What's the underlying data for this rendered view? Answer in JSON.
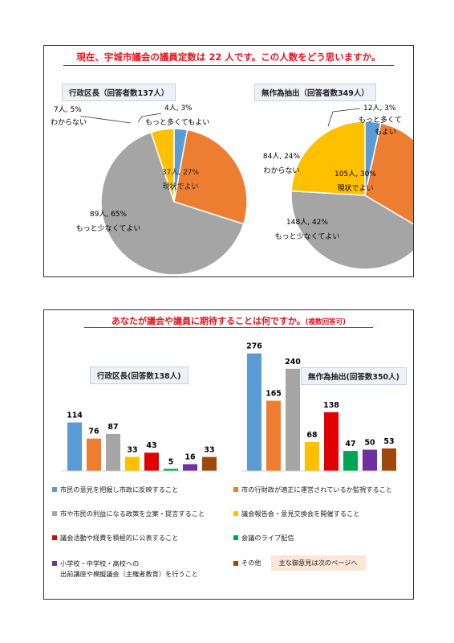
{
  "q1": {
    "title": "現在、宇城市議会の議員定数は 22 人です。この人数をどう思いますか。",
    "colors": {
      "more": "#5b9bd5",
      "current": "#ed7d31",
      "less": "#a5a5a5",
      "unknown": "#ffc000"
    }
  },
  "q2": {
    "title": "あなたが議会や議員に期待することは何ですか。",
    "title_note": "(複数回答可)"
  },
  "chart_data": [
    {
      "type": "pie",
      "title": "行政区長（回答者数137人）",
      "slices": [
        {
          "key": "more",
          "label_line1": "4人, 3%",
          "label_line2": "もっと多くてもよい",
          "value": 4,
          "percent": 3
        },
        {
          "key": "current",
          "label_line1": "37人, 27%",
          "label_line2": "現状でよい",
          "value": 37,
          "percent": 27
        },
        {
          "key": "less",
          "label_line1": "89人, 65%",
          "label_line2": "もっと少なくてよい",
          "value": 89,
          "percent": 65
        },
        {
          "key": "unknown",
          "label_line1": "7人, 5%",
          "label_line2": "わからない",
          "value": 7,
          "percent": 5
        }
      ]
    },
    {
      "type": "pie",
      "title": "無作為抽出（回答者数349人）",
      "slices": [
        {
          "key": "more",
          "label_line1": "12人, 3%",
          "label_line2": "もっと多くて",
          "label_line3": "もよい",
          "value": 12,
          "percent": 3
        },
        {
          "key": "current",
          "label_line1": "105人, 30%",
          "label_line2": "現状でよい",
          "value": 105,
          "percent": 30
        },
        {
          "key": "less",
          "label_line1": "148人, 42%",
          "label_line2": "もっと少なくてよい",
          "value": 148,
          "percent": 42
        },
        {
          "key": "unknown",
          "label_line1": "84人, 24%",
          "label_line2": "わからない",
          "value": 84,
          "percent": 24
        }
      ]
    },
    {
      "type": "bar",
      "title": "行政区長(回答数138人)",
      "values": [
        114,
        76,
        87,
        33,
        43,
        5,
        16,
        33
      ]
    },
    {
      "type": "bar",
      "title": "無作為抽出(回答数350人)",
      "values": [
        276,
        165,
        240,
        68,
        138,
        47,
        50,
        53
      ]
    }
  ],
  "bar_colors": [
    "#5b9bd5",
    "#ed7d31",
    "#a5a5a5",
    "#ffc000",
    "#e00000",
    "#00a651",
    "#7030a0",
    "#9e480e"
  ],
  "legend": [
    {
      "text": "市民の意見を把握し市政に反映すること"
    },
    {
      "text": "市の行財政が適正に運営されているか監視すること"
    },
    {
      "text": "市や市民の利益になる政策を立案・提言すること"
    },
    {
      "text": "議会報告会・意見交換会を開催すること"
    },
    {
      "text": "議会活動や経費を積極的に公表すること"
    },
    {
      "text": "会議のライブ配信"
    },
    {
      "text": "小学校・中学校・高校への",
      "text2": "出前講座や模擬議会（主権者教育）を行うこと"
    },
    {
      "text": "その他"
    }
  ],
  "note": "主な御意見は次のページへ"
}
